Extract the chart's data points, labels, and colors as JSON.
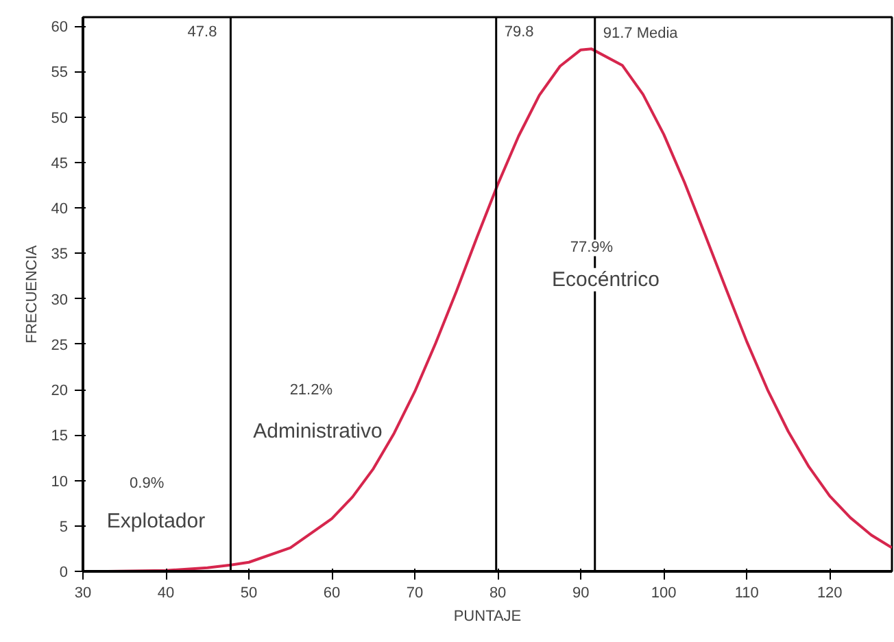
{
  "chart_data": {
    "type": "line",
    "xlabel": "PUNTAJE",
    "ylabel": "FRECUENCIA",
    "x": [
      33,
      40,
      45,
      47.8,
      50,
      55,
      60,
      62.5,
      65,
      67.5,
      70,
      72.5,
      75,
      77.5,
      80,
      82.5,
      85,
      87.5,
      90,
      91.3,
      95,
      97.5,
      100,
      102.5,
      105,
      107.5,
      110,
      112.5,
      115,
      117.5,
      120,
      122.5,
      125,
      127.5
    ],
    "series": [
      {
        "color": "#d6264d",
        "values": [
          0.0,
          0.1,
          0.4,
          0.7,
          1.0,
          2.6,
          5.8,
          8.2,
          11.3,
          15.2,
          19.8,
          25.1,
          30.8,
          36.8,
          42.6,
          47.9,
          52.4,
          55.6,
          57.4,
          57.5,
          55.7,
          52.5,
          48.1,
          42.8,
          37.0,
          31.1,
          25.3,
          20.0,
          15.4,
          11.5,
          8.3,
          5.9,
          4.0,
          2.6
        ]
      }
    ],
    "xlim": [
      30,
      127.5
    ],
    "ylim": [
      0,
      61
    ],
    "xticks": [
      30,
      40,
      50,
      60,
      70,
      80,
      90,
      100,
      110,
      120
    ],
    "yticks": [
      0,
      5,
      10,
      15,
      20,
      25,
      30,
      35,
      40,
      45,
      50,
      55,
      60
    ],
    "grid": false,
    "marker": "none",
    "line_style": "solid",
    "ref_lines": [
      {
        "axis": "x",
        "value": 47.8,
        "label": "47.8",
        "color": "#000000"
      },
      {
        "axis": "x",
        "value": 79.8,
        "label": "79.8",
        "color": "#000000"
      },
      {
        "axis": "x",
        "value": 91.7,
        "label": "91.7   Media",
        "color": "#000000"
      }
    ],
    "annotations": [
      "0.9%",
      "Explotador",
      "21.2%",
      "Administrativo",
      "77.9%",
      "Ecocéntrico"
    ]
  }
}
